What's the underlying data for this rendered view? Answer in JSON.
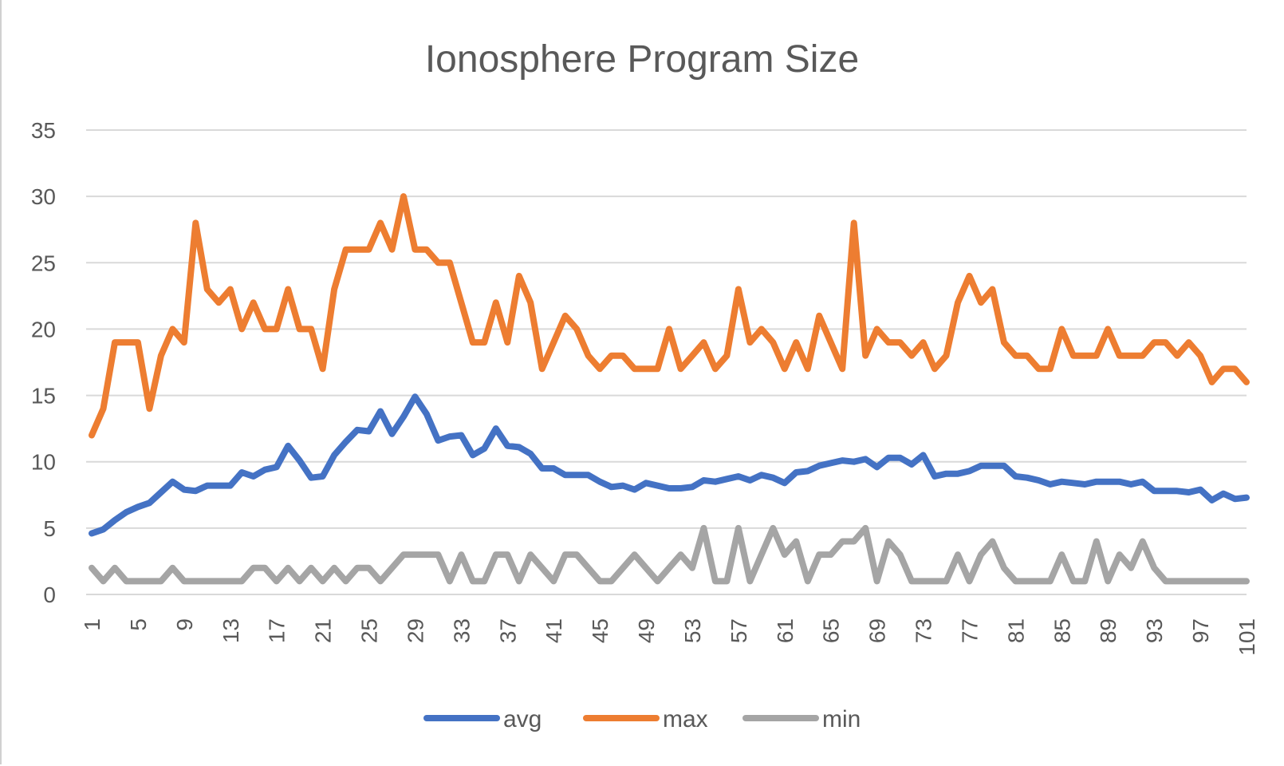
{
  "chart_data": {
    "type": "line",
    "title": "Ionosphere  Program Size",
    "xlabel": "",
    "ylabel": "",
    "ylim": [
      0,
      35
    ],
    "yticks": [
      "0",
      "5",
      "10",
      "15",
      "20",
      "25",
      "30",
      "35"
    ],
    "x": [
      1,
      2,
      3,
      4,
      5,
      6,
      7,
      8,
      9,
      10,
      11,
      12,
      13,
      14,
      15,
      16,
      17,
      18,
      19,
      20,
      21,
      22,
      23,
      24,
      25,
      26,
      27,
      28,
      29,
      30,
      31,
      32,
      33,
      34,
      35,
      36,
      37,
      38,
      39,
      40,
      41,
      42,
      43,
      44,
      45,
      46,
      47,
      48,
      49,
      50,
      51,
      52,
      53,
      54,
      55,
      56,
      57,
      58,
      59,
      60,
      61,
      62,
      63,
      64,
      65,
      66,
      67,
      68,
      69,
      70,
      71,
      72,
      73,
      74,
      75,
      76,
      77,
      78,
      79,
      80,
      81,
      82,
      83,
      84,
      85,
      86,
      87,
      88,
      89,
      90,
      91,
      92,
      93,
      94,
      95,
      96,
      97,
      98,
      99,
      100,
      101
    ],
    "xtick_labels": [
      "1",
      "5",
      "9",
      "13",
      "17",
      "21",
      "25",
      "29",
      "33",
      "37",
      "41",
      "45",
      "49",
      "53",
      "57",
      "61",
      "65",
      "69",
      "73",
      "77",
      "81",
      "85",
      "89",
      "93",
      "97",
      "101"
    ],
    "grid": true,
    "legend_position": "bottom",
    "series": [
      {
        "name": "avg",
        "color": "#4472c4",
        "values": [
          4.6,
          4.9,
          5.6,
          6.2,
          6.6,
          6.9,
          7.7,
          8.5,
          7.9,
          7.8,
          8.2,
          8.2,
          8.2,
          9.2,
          8.9,
          9.4,
          9.6,
          11.2,
          10.1,
          8.8,
          8.9,
          10.5,
          11.5,
          12.4,
          12.3,
          13.8,
          12.1,
          13.4,
          14.9,
          13.6,
          11.6,
          11.9,
          12.0,
          10.5,
          11.0,
          12.5,
          11.2,
          11.1,
          10.6,
          9.5,
          9.5,
          9.0,
          9.0,
          9.0,
          8.5,
          8.1,
          8.2,
          7.9,
          8.4,
          8.2,
          8.0,
          8.0,
          8.1,
          8.6,
          8.5,
          8.7,
          8.9,
          8.6,
          9.0,
          8.8,
          8.4,
          9.2,
          9.3,
          9.7,
          9.9,
          10.1,
          10.0,
          10.2,
          9.6,
          10.3,
          10.3,
          9.8,
          10.5,
          8.9,
          9.1,
          9.1,
          9.3,
          9.7,
          9.7,
          9.7,
          8.9,
          8.8,
          8.6,
          8.3,
          8.5,
          8.4,
          8.3,
          8.5,
          8.5,
          8.5,
          8.3,
          8.5,
          7.8,
          7.8,
          7.8,
          7.7,
          7.9,
          7.1,
          7.6,
          7.2,
          7.3
        ]
      },
      {
        "name": "max",
        "color": "#ed7d31",
        "values": [
          12,
          14,
          19,
          19,
          19,
          14,
          18,
          20,
          19,
          28,
          23,
          22,
          23,
          20,
          22,
          20,
          20,
          23,
          20,
          20,
          17,
          23,
          26,
          26,
          26,
          28,
          26,
          30,
          26,
          26,
          25,
          25,
          22,
          19,
          19,
          22,
          19,
          24,
          22,
          17,
          19,
          21,
          20,
          18,
          17,
          18,
          18,
          17,
          17,
          17,
          20,
          17,
          18,
          19,
          17,
          18,
          23,
          19,
          20,
          19,
          17,
          19,
          17,
          21,
          19,
          17,
          28,
          18,
          20,
          19,
          19,
          18,
          19,
          17,
          18,
          22,
          24,
          22,
          23,
          19,
          18,
          18,
          17,
          17,
          20,
          18,
          18,
          18,
          20,
          18,
          18,
          18,
          19,
          19,
          18,
          19,
          18,
          16,
          17,
          17,
          16
        ]
      },
      {
        "name": "min",
        "color": "#a5a5a5",
        "values": [
          2,
          1,
          2,
          1,
          1,
          1,
          1,
          2,
          1,
          1,
          1,
          1,
          1,
          1,
          2,
          2,
          1,
          2,
          1,
          2,
          1,
          2,
          1,
          2,
          2,
          1,
          2,
          3,
          3,
          3,
          3,
          1,
          3,
          1,
          1,
          3,
          3,
          1,
          3,
          2,
          1,
          3,
          3,
          2,
          1,
          1,
          2,
          3,
          2,
          1,
          2,
          3,
          2,
          5,
          1,
          1,
          5,
          1,
          3,
          5,
          3,
          4,
          1,
          3,
          3,
          4,
          4,
          5,
          1,
          4,
          3,
          1,
          1,
          1,
          1,
          3,
          1,
          3,
          4,
          2,
          1,
          1,
          1,
          1,
          3,
          1,
          1,
          4,
          1,
          3,
          2,
          4,
          2,
          1,
          1,
          1,
          1,
          1,
          1,
          1,
          1
        ]
      }
    ]
  }
}
